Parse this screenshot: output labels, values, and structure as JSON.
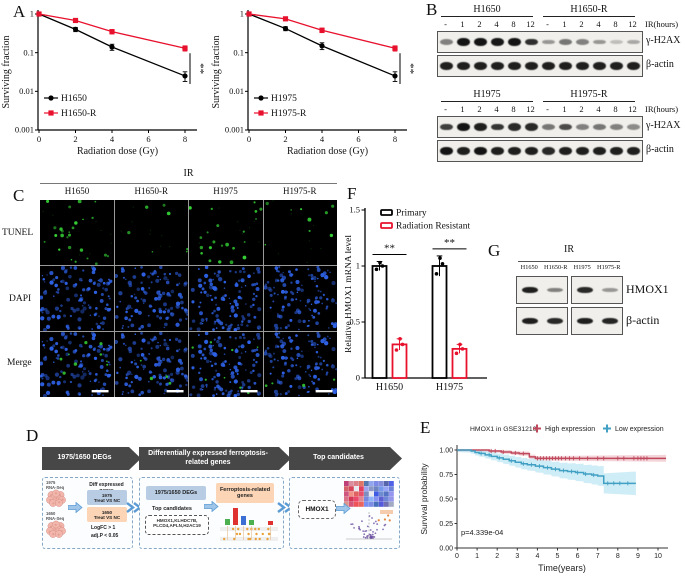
{
  "panels": {
    "a": "A",
    "b": "B",
    "c": "C",
    "d": "D",
    "e": "E",
    "f": "F",
    "g": "G"
  },
  "chart_data": [
    {
      "id": "surv_h1650",
      "type": "line",
      "log_y": true,
      "xlabel": "Radiation dose (Gy)",
      "ylabel": "Surviving fraction",
      "x": [
        0,
        2,
        4,
        8
      ],
      "xticks": [
        0,
        2,
        4,
        6,
        8
      ],
      "yticks": [
        1,
        0.1,
        0.01,
        0.001
      ],
      "ylim": [
        0.001,
        1
      ],
      "xlim": [
        0,
        8.7
      ],
      "series": [
        {
          "name": "H1650",
          "color": "#000000",
          "marker": "circle",
          "values": [
            1,
            0.4,
            0.14,
            0.025
          ],
          "errors": [
            0.05,
            0.05,
            0.025,
            0.007
          ]
        },
        {
          "name": "H1650-R",
          "color": "#e8112d",
          "marker": "square",
          "values": [
            1,
            0.68,
            0.35,
            0.13
          ],
          "errors": [
            0.05,
            0.06,
            0.045,
            0.02
          ]
        }
      ],
      "significance": "**"
    },
    {
      "id": "surv_h1975",
      "type": "line",
      "log_y": true,
      "xlabel": "Radiation dose (Gy)",
      "ylabel": "Surviving fraction",
      "x": [
        0,
        2,
        4,
        8
      ],
      "xticks": [
        0,
        2,
        4,
        6,
        8
      ],
      "yticks": [
        1,
        0.1,
        0.01,
        0.001
      ],
      "ylim": [
        0.001,
        1
      ],
      "xlim": [
        0,
        8.7
      ],
      "series": [
        {
          "name": "H1975",
          "color": "#000000",
          "marker": "circle",
          "values": [
            1,
            0.42,
            0.15,
            0.025
          ],
          "errors": [
            0.05,
            0.05,
            0.03,
            0.007
          ]
        },
        {
          "name": "H1975-R",
          "color": "#e8112d",
          "marker": "square",
          "values": [
            1,
            0.75,
            0.38,
            0.13
          ],
          "errors": [
            0.05,
            0.06,
            0.05,
            0.02
          ]
        }
      ],
      "significance": "**"
    },
    {
      "id": "hmox1_mrna",
      "type": "bar",
      "ylabel": "Relative HMOX1 mRNA level",
      "categories": [
        "H1650",
        "H1975"
      ],
      "yticks": [
        0,
        0.5,
        1,
        1.5
      ],
      "ylim": [
        0,
        1.5
      ],
      "series": [
        {
          "name": "Primary",
          "color": "#000000",
          "values": [
            1.0,
            1.0
          ],
          "errors": [
            0.04,
            0.09
          ],
          "points": [
            [
              0.97,
              1.0,
              1.03
            ],
            [
              0.93,
              1.02,
              1.07
            ]
          ]
        },
        {
          "name": "Radiation Resistant",
          "color": "#e8112d",
          "values": [
            0.3,
            0.26
          ],
          "errors": [
            0.05,
            0.04
          ],
          "points": [
            [
              0.25,
              0.3,
              0.35
            ],
            [
              0.22,
              0.26,
              0.3
            ]
          ]
        }
      ],
      "significance": [
        "**",
        "**"
      ]
    },
    {
      "id": "km_hmox1",
      "type": "km",
      "title": "HMOX1 in GSE31210",
      "xlabel": "Time(years)",
      "ylabel": "Survival probability",
      "p_label": "p=4.339e-04",
      "xticks": [
        0,
        1,
        2,
        3,
        4,
        5,
        6,
        7,
        8,
        9,
        10
      ],
      "yticks": [
        0,
        0.25,
        0.5,
        0.75,
        1
      ],
      "series": [
        {
          "name": "High expression",
          "color": "#c0485c",
          "band_color": "#e8aab4",
          "band_start": 0.015,
          "band_end": 0.035,
          "steps": [
            [
              0,
              1.0
            ],
            [
              1.6,
              1.0
            ],
            [
              1.6,
              0.99
            ],
            [
              2.2,
              0.99
            ],
            [
              2.2,
              0.98
            ],
            [
              2.7,
              0.98
            ],
            [
              2.7,
              0.97
            ],
            [
              3.1,
              0.97
            ],
            [
              3.1,
              0.963
            ],
            [
              3.6,
              0.963
            ],
            [
              3.6,
              0.93
            ],
            [
              3.9,
              0.93
            ],
            [
              3.9,
              0.915
            ],
            [
              10.4,
              0.915
            ]
          ],
          "censors": [
            1.7,
            1.9,
            2.3,
            2.9,
            3.3,
            4.0,
            4.15,
            4.3,
            4.45,
            4.6,
            4.75,
            4.9,
            5.05,
            5.2,
            5.4,
            5.6,
            5.8,
            6.1,
            6.5,
            7.0,
            7.3,
            8.0,
            8.3,
            8.8,
            9.0,
            9.15,
            9.3,
            9.45
          ]
        },
        {
          "name": "Low expression",
          "color": "#41a0c4",
          "band_color": "#9fdcef",
          "band_start": 0.02,
          "band_end": 0.12,
          "steps": [
            [
              0,
              1.0
            ],
            [
              0.6,
              1.0
            ],
            [
              0.7,
              0.99
            ],
            [
              0.9,
              0.975
            ],
            [
              1.1,
              0.965
            ],
            [
              1.4,
              0.95
            ],
            [
              1.7,
              0.935
            ],
            [
              2.0,
              0.92
            ],
            [
              2.3,
              0.905
            ],
            [
              2.6,
              0.89
            ],
            [
              2.9,
              0.875
            ],
            [
              3.2,
              0.86
            ],
            [
              3.5,
              0.85
            ],
            [
              3.9,
              0.835
            ],
            [
              4.3,
              0.82
            ],
            [
              4.7,
              0.805
            ],
            [
              5.1,
              0.79
            ],
            [
              5.5,
              0.78
            ],
            [
              5.9,
              0.77
            ],
            [
              6.3,
              0.755
            ],
            [
              6.7,
              0.745
            ],
            [
              7.0,
              0.735
            ],
            [
              7.3,
              0.66
            ],
            [
              8.9,
              0.66
            ]
          ],
          "censors": [
            1.2,
            1.6,
            2.1,
            2.7,
            3.3,
            3.7,
            4.1,
            4.5,
            4.9,
            5.3,
            5.7,
            6.0,
            6.4,
            6.8,
            7.5,
            7.8,
            8.1,
            8.5
          ]
        }
      ]
    }
  ],
  "panel_b": {
    "ir_label": "IR(hours)",
    "groups": [
      {
        "cell_lines": [
          "H1650",
          "H1650-R"
        ],
        "lanes": [
          "-",
          "1",
          "2",
          "4",
          "8",
          "12",
          "-",
          "1",
          "2",
          "4",
          "8",
          "12"
        ],
        "rows": [
          {
            "label": "γ-H2AX",
            "intensities": [
              0.5,
              1,
              1,
              0.98,
              1,
              0.88,
              0.4,
              0.55,
              0.5,
              0.4,
              0.22,
              0.32
            ]
          },
          {
            "label": "β-actin",
            "intensities": [
              0.95,
              0.95,
              0.95,
              0.95,
              0.95,
              0.95,
              0.95,
              0.95,
              0.95,
              0.95,
              0.95,
              0.95
            ]
          }
        ]
      },
      {
        "cell_lines": [
          "H1975",
          "H1975-R"
        ],
        "lanes": [
          "-",
          "1",
          "2",
          "4",
          "8",
          "12",
          "-",
          "1",
          "2",
          "4",
          "8",
          "12"
        ],
        "rows": [
          {
            "label": "γ-H2AX",
            "intensities": [
              0.8,
              1,
              0.95,
              0.85,
              0.9,
              0.9,
              0.55,
              0.75,
              0.5,
              0.55,
              0.5,
              0.45
            ]
          },
          {
            "label": "β-actin",
            "intensities": [
              1,
              0.95,
              1,
              0.95,
              0.95,
              0.95,
              0.9,
              0.95,
              0.95,
              0.95,
              0.95,
              0.95
            ]
          }
        ]
      }
    ]
  },
  "panel_c": {
    "ir_label": "IR",
    "columns": [
      "H1650",
      "H1650-R",
      "H1975",
      "H1975-R"
    ],
    "row_labels": [
      "TUNEL",
      "DAPI",
      "Merge"
    ],
    "tunel_counts": [
      26,
      7,
      22,
      9
    ],
    "dapi_count": 115,
    "merge_extra_green": [
      9,
      4,
      8,
      4
    ],
    "colors": {
      "tunel_green": "#35d435",
      "dapi_blue": "#2e62e8"
    }
  },
  "panel_d": {
    "banners": [
      "1975/1650 DEGs",
      "Differentially expressed ferroptosis-related genes",
      "Top candidates"
    ],
    "box1": {
      "samples": [
        [
          "1975",
          "RNA-Seq"
        ],
        [
          "1650",
          "RNA-Seq"
        ]
      ],
      "diff_title": "Diff expressed genes",
      "comparisons": [
        [
          "1975",
          "Treat VS NC"
        ],
        [
          "1650",
          "Treat VS NC"
        ]
      ],
      "criteria": [
        "LogFC > 1",
        "adj.P < 0.05"
      ]
    },
    "box2": {
      "degs_label": "1975/1650 DEGs",
      "ferroptosis_label": "Ferroptosis-related genes",
      "top_title": "Top candidates",
      "gene_lines": [
        "HMOX1,KLHDC7B,",
        "PLCD4,APLN,H2AC19"
      ]
    },
    "box3": {
      "gene": "HMOX1"
    }
  },
  "panel_g": {
    "ir_label": "IR",
    "lanes": [
      "H1650",
      "H1650-R",
      "H1975",
      "H1975-R"
    ],
    "rows": [
      {
        "label": "HMOX1",
        "intensities": [
          0.95,
          0.5,
          0.9,
          0.4
        ]
      },
      {
        "label": "β-actin",
        "intensities": [
          0.95,
          0.9,
          0.95,
          0.92
        ]
      }
    ]
  }
}
